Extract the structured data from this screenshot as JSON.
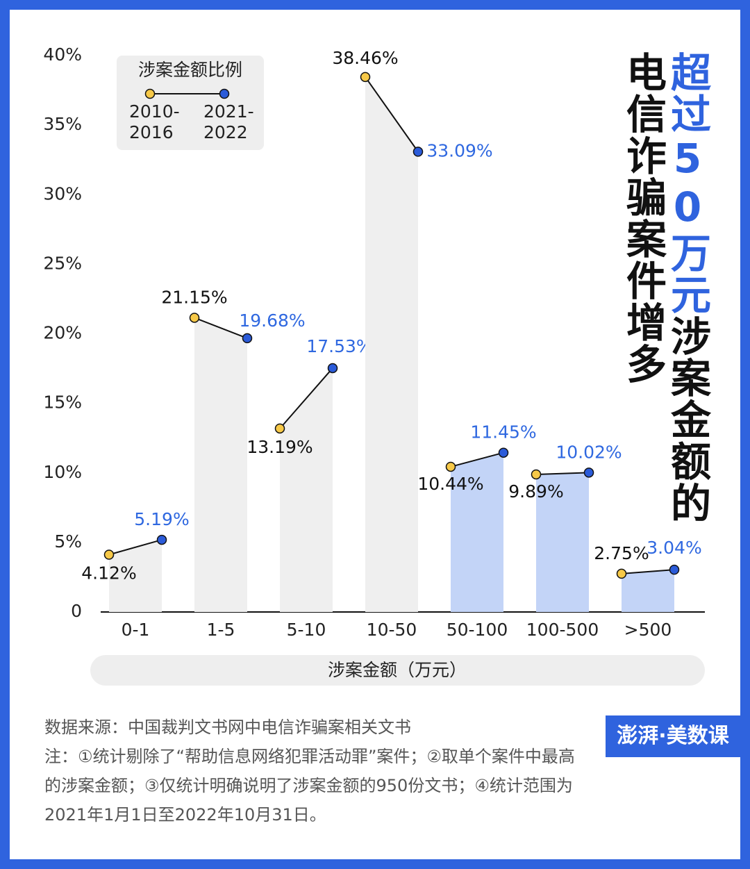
{
  "chart_data": {
    "type": "slope-bar",
    "title": "电信诈骗案件增多",
    "subtitle_highlight": "超过50万元",
    "subtitle": "涉案金额的",
    "legend_title": "涉案金额比例",
    "x_label": "涉案金额（万元）",
    "categories": [
      "0-1",
      "1-5",
      "5-10",
      "10-50",
      "50-100",
      "100-500",
      ">500"
    ],
    "bar_colors": [
      "#efefef",
      "#efefef",
      "#efefef",
      "#efefef",
      "#c3d4f7",
      "#c3d4f7",
      "#c3d4f7"
    ],
    "series": [
      {
        "name": "2010-2016",
        "color": "#f7c948",
        "label_color": "#111111",
        "values": [
          4.12,
          21.15,
          13.19,
          38.46,
          10.44,
          9.89,
          2.75
        ],
        "value_labels": [
          "4.12%",
          "21.15%",
          "13.19%",
          "38.46%",
          "10.44%",
          "9.89%",
          "2.75%"
        ]
      },
      {
        "name": "2021-2022",
        "color": "#2b5bd9",
        "label_color": "#2f68e0",
        "values": [
          5.19,
          19.68,
          17.53,
          33.09,
          11.45,
          10.02,
          3.04
        ],
        "value_labels": [
          "5.19%",
          "19.68%",
          "17.53%",
          "33.09%",
          "11.45%",
          "10.02%",
          "3.04%"
        ]
      }
    ],
    "ylim": [
      0,
      40
    ],
    "yticks": [
      0,
      {
        "value": 5,
        "label": "5%"
      },
      {
        "value": 10,
        "label": "10%"
      },
      {
        "value": 15,
        "label": "15%"
      },
      {
        "value": 20,
        "label": "20%"
      },
      {
        "value": 25,
        "label": "25%"
      },
      {
        "value": 30,
        "label": "30%"
      },
      {
        "value": 35,
        "label": "35%"
      },
      {
        "value": 40,
        "label": "40%"
      }
    ]
  },
  "footer": {
    "source": "数据来源：中国裁判文书网中电信诈骗案相关文书",
    "note": "注：①统计剔除了“帮助信息网络犯罪活动罪”案件；②取单个案件中最高的涉案金额；③仅统计明确说明了涉案金额的950份文书；④统计范围为2021年1月1日至2022年10月31日。",
    "logo": "澎湃·美数课"
  }
}
